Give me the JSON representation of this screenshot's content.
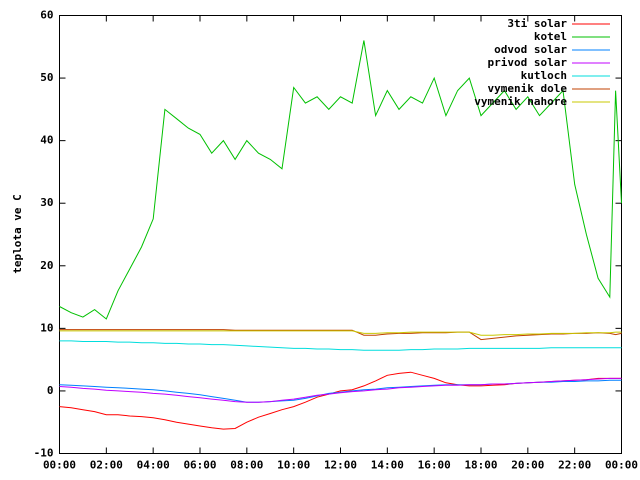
{
  "chart_data": {
    "type": "line",
    "y_label": "teplota ve C",
    "x": [
      0,
      0.5,
      1,
      1.5,
      2,
      2.5,
      3,
      3.5,
      4,
      4.5,
      5,
      5.5,
      6,
      6.5,
      7,
      7.5,
      8,
      8.5,
      9,
      9.5,
      10,
      10.5,
      11,
      11.5,
      12,
      12.5,
      13,
      13.5,
      14,
      14.5,
      15,
      15.5,
      16,
      16.5,
      17,
      17.5,
      18,
      18.5,
      19,
      19.5,
      20,
      20.5,
      21,
      21.5,
      22,
      22.5,
      23,
      23.5,
      23.75,
      24
    ],
    "xlim": [
      0,
      24
    ],
    "xticks": [
      {
        "value": 0,
        "label": "00:00"
      },
      {
        "value": 2,
        "label": "02:00"
      },
      {
        "value": 4,
        "label": "04:00"
      },
      {
        "value": 6,
        "label": "06:00"
      },
      {
        "value": 8,
        "label": "08:00"
      },
      {
        "value": 10,
        "label": "10:00"
      },
      {
        "value": 12,
        "label": "12:00"
      },
      {
        "value": 14,
        "label": "14:00"
      },
      {
        "value": 16,
        "label": "16:00"
      },
      {
        "value": 18,
        "label": "18:00"
      },
      {
        "value": 20,
        "label": "20:00"
      },
      {
        "value": 22,
        "label": "22:00"
      },
      {
        "value": 24,
        "label": "00:00"
      }
    ],
    "ylim": [
      -10,
      60
    ],
    "yticks": [
      -10,
      0,
      10,
      20,
      30,
      40,
      50,
      60
    ],
    "legend": "top-right",
    "series": [
      {
        "name": "3ti solar",
        "color": "#ff0000",
        "values": [
          -2.5,
          -2.7,
          -3,
          -3.3,
          -3.8,
          -3.8,
          -4,
          -4.1,
          -4.3,
          -4.6,
          -5,
          -5.3,
          -5.6,
          -5.9,
          -6.1,
          -6,
          -5,
          -4.2,
          -3.6,
          -3,
          -2.5,
          -1.8,
          -1,
          -0.5,
          0,
          0.2,
          0.8,
          1.6,
          2.5,
          2.8,
          3,
          2.5,
          2,
          1.3,
          1,
          0.8,
          0.8,
          0.9,
          1,
          1.2,
          1.3,
          1.4,
          1.5,
          1.6,
          1.7,
          1.8,
          2,
          2,
          2,
          2
        ]
      },
      {
        "name": "kotel",
        "color": "#00c000",
        "values": [
          13.5,
          12.5,
          11.8,
          13,
          11.5,
          16,
          19.5,
          23,
          27.5,
          45,
          43.5,
          42,
          41,
          38,
          40,
          37,
          40,
          38,
          37,
          35.5,
          48.5,
          46,
          47,
          45,
          47,
          46,
          56,
          44,
          48,
          45,
          47,
          46,
          50,
          44,
          48,
          50,
          44,
          46,
          48,
          45,
          47,
          44,
          46,
          48,
          33,
          25,
          18,
          15,
          48,
          30
        ]
      },
      {
        "name": "odvod solar",
        "color": "#0080ff",
        "values": [
          1,
          0.9,
          0.8,
          0.7,
          0.6,
          0.5,
          0.4,
          0.3,
          0.2,
          0,
          -0.2,
          -0.4,
          -0.6,
          -0.9,
          -1.2,
          -1.5,
          -1.8,
          -1.8,
          -1.7,
          -1.6,
          -1.5,
          -1.2,
          -0.8,
          -0.4,
          -0.2,
          0,
          0.2,
          0.3,
          0.5,
          0.6,
          0.7,
          0.8,
          0.9,
          1,
          1,
          1,
          1,
          1.1,
          1.1,
          1.2,
          1.3,
          1.4,
          1.4,
          1.5,
          1.5,
          1.6,
          1.6,
          1.7,
          1.7,
          1.7
        ]
      },
      {
        "name": "privod solar",
        "color": "#c000ff",
        "values": [
          0.7,
          0.6,
          0.4,
          0.3,
          0.1,
          0,
          -0.1,
          -0.2,
          -0.4,
          -0.5,
          -0.7,
          -0.9,
          -1.1,
          -1.3,
          -1.5,
          -1.7,
          -1.8,
          -1.8,
          -1.7,
          -1.5,
          -1.3,
          -1,
          -0.7,
          -0.5,
          -0.3,
          -0.1,
          0,
          0.2,
          0.3,
          0.5,
          0.6,
          0.7,
          0.8,
          0.9,
          0.9,
          1,
          1,
          1.1,
          1.1,
          1.2,
          1.3,
          1.4,
          1.5,
          1.6,
          1.7,
          1.8,
          1.9,
          2,
          2,
          2
        ]
      },
      {
        "name": "kutloch",
        "color": "#00dddd",
        "values": [
          8,
          8,
          7.9,
          7.9,
          7.9,
          7.8,
          7.8,
          7.7,
          7.7,
          7.6,
          7.6,
          7.5,
          7.5,
          7.4,
          7.4,
          7.3,
          7.2,
          7.1,
          7,
          6.9,
          6.8,
          6.8,
          6.7,
          6.7,
          6.6,
          6.6,
          6.5,
          6.5,
          6.5,
          6.5,
          6.6,
          6.6,
          6.7,
          6.7,
          6.7,
          6.8,
          6.8,
          6.8,
          6.8,
          6.8,
          6.8,
          6.8,
          6.9,
          6.9,
          6.9,
          6.9,
          6.9,
          6.9,
          6.9,
          6.9
        ]
      },
      {
        "name": "vymenik dole",
        "color": "#c04000",
        "values": [
          9.8,
          9.8,
          9.8,
          9.8,
          9.8,
          9.8,
          9.8,
          9.8,
          9.8,
          9.8,
          9.8,
          9.8,
          9.8,
          9.8,
          9.8,
          9.7,
          9.7,
          9.7,
          9.7,
          9.7,
          9.7,
          9.7,
          9.7,
          9.7,
          9.7,
          9.7,
          8.9,
          8.9,
          9.1,
          9.2,
          9.2,
          9.3,
          9.3,
          9.3,
          9.4,
          9.4,
          8.2,
          8.4,
          8.6,
          8.8,
          8.9,
          9,
          9.1,
          9.1,
          9.2,
          9.2,
          9.3,
          9.2,
          9,
          9.2
        ]
      },
      {
        "name": "vymenik nahore",
        "color": "#c8c800",
        "values": [
          9.6,
          9.6,
          9.6,
          9.6,
          9.6,
          9.6,
          9.6,
          9.6,
          9.6,
          9.6,
          9.6,
          9.6,
          9.6,
          9.6,
          9.6,
          9.6,
          9.6,
          9.6,
          9.6,
          9.6,
          9.6,
          9.6,
          9.6,
          9.6,
          9.6,
          9.6,
          9.2,
          9.2,
          9.3,
          9.3,
          9.4,
          9.4,
          9.4,
          9.4,
          9.4,
          9.4,
          8.9,
          8.9,
          9,
          9,
          9.1,
          9.1,
          9.2,
          9.2,
          9.2,
          9.3,
          9.3,
          9.3,
          9.4,
          9.4
        ]
      }
    ]
  }
}
